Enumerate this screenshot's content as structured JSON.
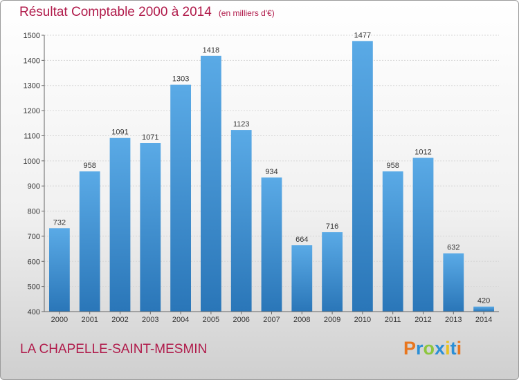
{
  "header": {
    "title": "Résultat Comptable 2000 à 2014",
    "unit": "(en milliers d'€)"
  },
  "footer": {
    "city": "LA CHAPELLE-SAINT-MESMIN",
    "logo_letters": [
      "P",
      "r",
      "o",
      "x",
      "i",
      "t",
      "i"
    ],
    "logo_colors": [
      "#e8761e",
      "#2b8fd6",
      "#8dc63f",
      "#2b8fd6",
      "#e8c21e",
      "#2b8fd6",
      "#e8761e"
    ]
  },
  "chart_data": {
    "type": "bar",
    "categories": [
      "2000",
      "2001",
      "2002",
      "2003",
      "2004",
      "2005",
      "2006",
      "2007",
      "2008",
      "2009",
      "2010",
      "2011",
      "2012",
      "2013",
      "2014"
    ],
    "values": [
      732,
      958,
      1091,
      1071,
      1303,
      1418,
      1123,
      934,
      664,
      716,
      1477,
      958,
      1012,
      632,
      420
    ],
    "title": "Résultat Comptable 2000 à 2014",
    "xlabel": "",
    "ylabel": "",
    "ylim": [
      400,
      1500
    ],
    "yticks": [
      400,
      500,
      600,
      700,
      800,
      900,
      1000,
      1100,
      1200,
      1300,
      1400,
      1500
    ],
    "grid": true,
    "bar_color": "#3d90d4"
  }
}
